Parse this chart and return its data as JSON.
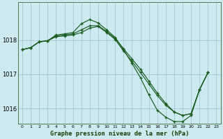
{
  "title": "Graphe pression niveau de la mer (hPa)",
  "background_color": "#cdeaf0",
  "grid_color": "#a8cdd8",
  "line_color": "#1a5c20",
  "xlim": [
    -0.5,
    23.5
  ],
  "ylim": [
    1015.55,
    1019.1
  ],
  "yticks": [
    1016,
    1017,
    1018
  ],
  "xticks": [
    0,
    1,
    2,
    3,
    4,
    5,
    6,
    7,
    8,
    9,
    10,
    11,
    12,
    13,
    14,
    15,
    16,
    17,
    18,
    19,
    20,
    21,
    22,
    23
  ],
  "line1_x": [
    0,
    1,
    2,
    3,
    4,
    5,
    6,
    7,
    8,
    9,
    10,
    11,
    12,
    13,
    14,
    15,
    16,
    17,
    18,
    19,
    20,
    21,
    22
  ],
  "line1_y": [
    1017.72,
    1017.78,
    1017.95,
    1017.98,
    1018.15,
    1018.18,
    1018.22,
    1018.48,
    1018.6,
    1018.5,
    1018.3,
    1018.08,
    1017.72,
    1017.32,
    1016.9,
    1016.4,
    1015.95,
    1015.75,
    1015.62,
    1015.62,
    1015.8,
    1016.55,
    1017.05
  ],
  "line2_x": [
    0,
    1,
    2,
    3,
    4,
    5,
    6,
    7,
    8,
    9,
    10,
    11,
    12,
    13,
    14,
    15,
    16,
    17,
    18,
    19,
    20,
    21,
    22
  ],
  "line2_y": [
    1017.72,
    1017.78,
    1017.95,
    1017.98,
    1018.12,
    1018.15,
    1018.18,
    1018.3,
    1018.42,
    1018.42,
    1018.25,
    1018.05,
    1017.75,
    1017.45,
    1017.15,
    1016.8,
    1016.45,
    1016.15,
    1015.9,
    1015.8,
    1015.85,
    1016.55,
    1017.05
  ],
  "line3_x": [
    0,
    1,
    2,
    3,
    4,
    5,
    6,
    7,
    8,
    9,
    10,
    11,
    12,
    13,
    14,
    15,
    16,
    17,
    18,
    19,
    20,
    21,
    22
  ],
  "line3_y": [
    1017.72,
    1017.78,
    1017.95,
    1017.98,
    1018.1,
    1018.12,
    1018.15,
    1018.22,
    1018.35,
    1018.4,
    1018.22,
    1018.02,
    1017.68,
    1017.38,
    1017.05,
    1016.72,
    1016.38,
    1016.1,
    1015.9,
    1015.8,
    1015.85,
    1016.55,
    1017.05
  ]
}
